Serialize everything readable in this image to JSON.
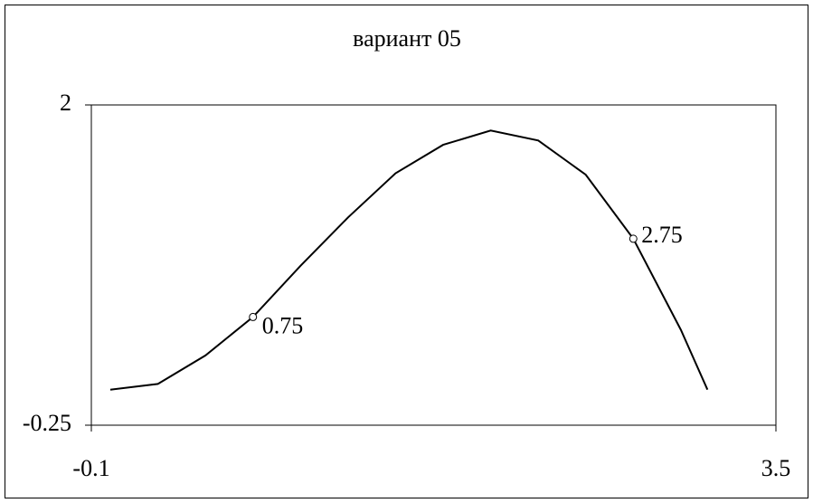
{
  "chart_data": {
    "type": "line",
    "title": "вариант 05",
    "x": [
      0,
      0.25,
      0.5,
      0.75,
      1.0,
      1.25,
      1.5,
      1.75,
      2.0,
      2.25,
      2.5,
      2.75,
      3.0,
      3.14
    ],
    "values": [
      0,
      0.04,
      0.24,
      0.51,
      0.87,
      1.21,
      1.52,
      1.72,
      1.82,
      1.75,
      1.51,
      1.06,
      0.42,
      0
    ],
    "color": "#000000",
    "points": {
      "x": [
        0.75,
        2.75
      ],
      "values": [
        0.51,
        1.06
      ]
    },
    "xlim": [
      -0.1,
      3.5
    ],
    "xticks": [
      -0.1,
      3.5
    ],
    "ylim": [
      -0.25,
      2
    ],
    "yticks": [
      -0.25,
      2
    ],
    "grid": false
  }
}
